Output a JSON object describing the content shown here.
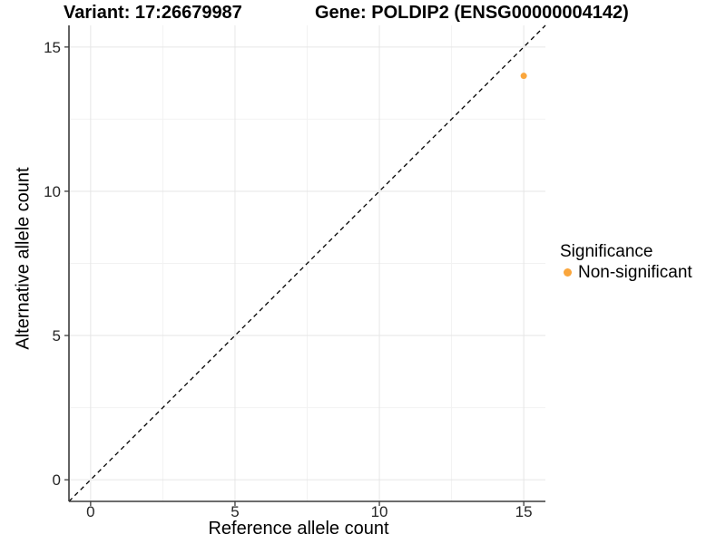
{
  "titles": {
    "variant": "Variant: 17:26679987",
    "gene": "Gene: POLDIP2 (ENSG00000004142)"
  },
  "chart_data": {
    "type": "scatter",
    "title": "Variant: 17:26679987    Gene: POLDIP2 (ENSG00000004142)",
    "xlabel": "Reference allele count",
    "ylabel": "Alternative allele count",
    "xlim": [
      -0.75,
      15.75
    ],
    "ylim": [
      -0.75,
      15.75
    ],
    "xticks": [
      0,
      5,
      10,
      15
    ],
    "yticks": [
      0,
      5,
      10,
      15
    ],
    "minor_breaks": [
      2.5,
      7.5,
      12.5
    ],
    "grid": true,
    "reference_line": {
      "type": "identity",
      "dash": true
    },
    "series": [
      {
        "name": "Non-significant",
        "color": "#FAA63C",
        "point_radius": 3.5,
        "points": [
          [
            15,
            14
          ]
        ]
      }
    ],
    "legend": {
      "title": "Significance",
      "position": "right",
      "items": [
        {
          "label": "Non-significant",
          "color": "#FAA63C"
        }
      ]
    }
  },
  "colors": {
    "background": "#FFFFFF",
    "axis": "#3C3C3C",
    "tick_text": "#262626",
    "grid_major": "#E6E6E6",
    "grid_minor": "#F2F2F2",
    "reference_line": "#000000",
    "point": "#FAA63C"
  }
}
